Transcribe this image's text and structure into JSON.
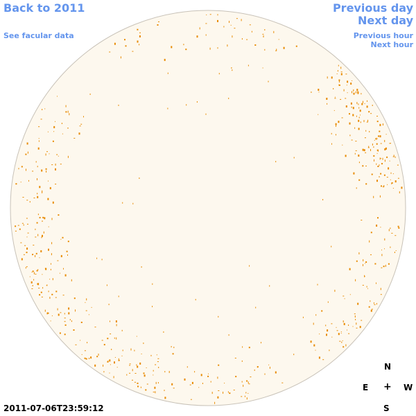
{
  "nav": {
    "back_label": "Back to 2011",
    "facular_label": "See facular data",
    "prev_day_label": "Previous day",
    "next_day_label": "Next day",
    "prev_hour_label": "Previous hour",
    "next_hour_label": "Next hour"
  },
  "compass": {
    "north": "N",
    "east": "E",
    "center": "+",
    "west": "W",
    "south": "S"
  },
  "timestamp": "2011-07-06T23:59:12",
  "colors": {
    "link": "#6495ed",
    "disk_fill": "#fdf8ee",
    "disk_outline": "#c8c2b8",
    "facula": "#e88a00"
  }
}
